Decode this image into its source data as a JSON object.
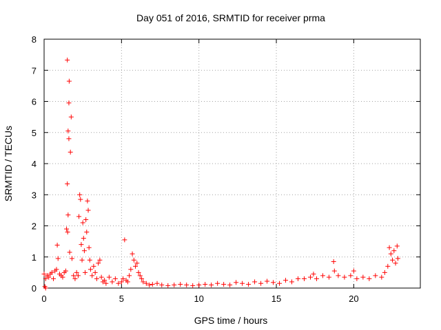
{
  "chart_data": {
    "type": "scatter",
    "title": "Day 051 of 2016, SRMTID for receiver prma",
    "xlabel": "GPS time / hours",
    "ylabel": "SRMTID / TECUs",
    "xlim": [
      0,
      24.3
    ],
    "ylim": [
      0,
      8
    ],
    "xticks": [
      0,
      5,
      10,
      15,
      20
    ],
    "yticks": [
      0,
      1,
      2,
      3,
      4,
      5,
      6,
      7,
      8
    ],
    "grid": true,
    "marker": "+",
    "color": "#ff0000",
    "series": [
      {
        "name": "SRMTID",
        "x": [
          0.0,
          0.05,
          0.1,
          0.1,
          0.2,
          0.3,
          0.4,
          0.5,
          0.6,
          0.7,
          0.8,
          0.85,
          0.9,
          1.0,
          1.1,
          1.2,
          1.3,
          1.4,
          1.45,
          1.5,
          1.5,
          1.52,
          1.55,
          1.55,
          1.6,
          1.6,
          1.62,
          1.65,
          1.7,
          1.75,
          1.8,
          1.9,
          2.0,
          2.1,
          2.2,
          2.25,
          2.3,
          2.35,
          2.4,
          2.45,
          2.5,
          2.55,
          2.6,
          2.65,
          2.7,
          2.75,
          2.8,
          2.85,
          2.9,
          2.95,
          3.0,
          3.1,
          3.2,
          3.3,
          3.4,
          3.5,
          3.6,
          3.7,
          3.8,
          3.9,
          4.0,
          4.2,
          4.4,
          4.6,
          4.8,
          5.0,
          5.1,
          5.2,
          5.3,
          5.4,
          5.5,
          5.6,
          5.7,
          5.8,
          5.9,
          6.0,
          6.1,
          6.2,
          6.3,
          6.4,
          6.6,
          6.8,
          7.0,
          7.3,
          7.6,
          8.0,
          8.4,
          8.8,
          9.2,
          9.6,
          10.0,
          10.4,
          10.8,
          11.2,
          11.6,
          12.0,
          12.4,
          12.8,
          13.2,
          13.6,
          14.0,
          14.4,
          14.8,
          15.2,
          15.6,
          16.0,
          16.4,
          16.8,
          17.2,
          17.4,
          17.6,
          18.0,
          18.4,
          18.7,
          18.75,
          19.0,
          19.4,
          19.8,
          20.0,
          20.2,
          20.6,
          21.0,
          21.4,
          21.8,
          22.0,
          22.2,
          22.3,
          22.4,
          22.5,
          22.6,
          22.7,
          22.8,
          22.85
        ],
        "y": [
          0.45,
          0.05,
          0.0,
          0.3,
          0.4,
          0.35,
          0.45,
          0.5,
          0.3,
          0.55,
          0.6,
          1.38,
          0.95,
          0.45,
          0.4,
          0.35,
          0.5,
          0.55,
          1.9,
          3.35,
          7.33,
          1.8,
          2.35,
          5.05,
          4.8,
          5.95,
          6.65,
          1.15,
          4.37,
          5.5,
          0.95,
          0.4,
          0.3,
          0.5,
          0.4,
          2.3,
          3.0,
          2.85,
          1.4,
          0.9,
          2.1,
          1.6,
          1.2,
          0.5,
          2.2,
          1.8,
          2.8,
          2.5,
          1.3,
          0.9,
          0.6,
          0.4,
          0.7,
          0.5,
          0.3,
          0.8,
          0.9,
          0.35,
          0.2,
          0.25,
          0.15,
          0.35,
          0.2,
          0.3,
          0.15,
          0.2,
          0.3,
          1.55,
          0.25,
          0.2,
          0.4,
          0.6,
          1.1,
          0.9,
          0.7,
          0.8,
          0.5,
          0.4,
          0.3,
          0.2,
          0.15,
          0.1,
          0.12,
          0.15,
          0.1,
          0.08,
          0.1,
          0.12,
          0.1,
          0.08,
          0.1,
          0.12,
          0.1,
          0.15,
          0.12,
          0.1,
          0.18,
          0.15,
          0.12,
          0.2,
          0.15,
          0.22,
          0.18,
          0.15,
          0.25,
          0.2,
          0.3,
          0.3,
          0.35,
          0.45,
          0.3,
          0.4,
          0.35,
          0.85,
          0.55,
          0.4,
          0.35,
          0.4,
          0.55,
          0.3,
          0.35,
          0.3,
          0.4,
          0.35,
          0.5,
          0.7,
          1.3,
          1.1,
          0.9,
          1.2,
          0.8,
          1.35,
          0.95
        ]
      }
    ]
  }
}
